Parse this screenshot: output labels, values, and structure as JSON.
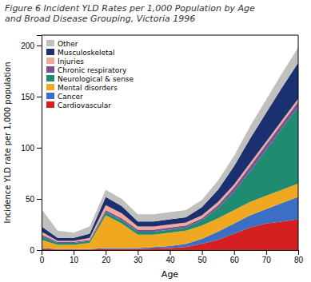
{
  "chart_data": {
    "type": "area",
    "stacked": true,
    "title": "Figure 6 Incident YLD Rates per 1,000 Population by Age\nand Broad Disease Grouping, Victoria 1996",
    "xlabel": "Age",
    "ylabel": "Incidence YLD rate per 1,000 population",
    "x": [
      0,
      5,
      10,
      15,
      20,
      25,
      30,
      35,
      40,
      45,
      50,
      55,
      60,
      65,
      70,
      75,
      80
    ],
    "series": [
      {
        "name": "Cardiovascular",
        "color": "#d42020",
        "values": [
          1,
          0.5,
          0.5,
          0.5,
          1,
          1,
          1,
          1.5,
          2,
          3,
          6,
          10,
          16,
          22,
          26,
          28,
          30
        ]
      },
      {
        "name": "Cancer",
        "color": "#3a6fc4",
        "values": [
          1,
          0.5,
          0.5,
          0.5,
          1,
          1,
          1,
          1.5,
          2,
          3,
          5,
          8,
          10,
          12,
          14,
          18,
          22
        ]
      },
      {
        "name": "Mental disorders",
        "color": "#f0a820",
        "values": [
          8,
          4,
          4,
          6,
          32,
          24,
          13,
          12,
          13,
          13,
          13,
          13,
          13,
          13,
          13,
          13,
          13
        ]
      },
      {
        "name": "Neurological & sense",
        "color": "#1f8b70",
        "values": [
          3,
          2,
          2,
          2,
          3,
          3,
          3,
          3,
          3,
          3,
          5,
          10,
          18,
          30,
          45,
          60,
          75
        ]
      },
      {
        "name": "Chronic respiratory",
        "color": "#7a5098",
        "values": [
          2,
          1,
          1,
          1,
          2,
          2,
          2,
          2,
          2,
          2,
          2,
          3,
          4,
          5,
          5,
          5,
          5
        ]
      },
      {
        "name": "Injuries",
        "color": "#f0a898",
        "values": [
          3,
          1,
          1,
          2,
          5,
          5,
          3,
          3,
          3,
          3,
          3,
          3,
          3,
          3,
          3,
          3,
          3
        ]
      },
      {
        "name": "Musculoskeletal",
        "color": "#1a3070",
        "values": [
          5,
          3,
          3,
          4,
          8,
          7,
          5,
          5,
          5,
          5,
          8,
          12,
          18,
          24,
          28,
          32,
          35
        ]
      },
      {
        "name": "Other",
        "color": "#c0c0bc",
        "values": [
          17,
          7,
          5,
          7,
          7,
          7,
          7,
          7,
          7,
          7,
          7,
          9,
          10,
          12,
          13,
          14,
          15
        ]
      }
    ],
    "xlim": [
      0,
      80
    ],
    "ylim": [
      0,
      210
    ],
    "xticks": [
      0,
      10,
      20,
      30,
      40,
      50,
      60,
      70,
      80
    ],
    "yticks": [
      0,
      50,
      100,
      150,
      200
    ],
    "legend": "upper left"
  }
}
